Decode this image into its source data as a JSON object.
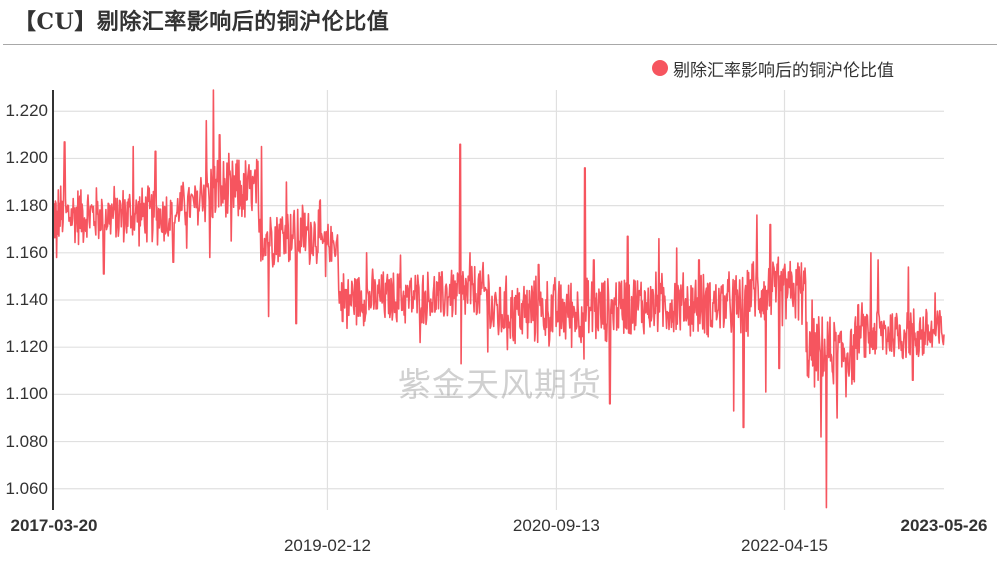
{
  "header": {
    "title": "【CU】剔除汇率影响后的铜沪伦比值"
  },
  "watermark": "紫金天风期货",
  "colors": {
    "series": "#f6555f",
    "axis": "#333333",
    "grid": "#e0e0e0",
    "title_rule": "#a8a8a8"
  },
  "chart_data": {
    "type": "line",
    "title": "【CU】剔除汇率影响后的铜沪伦比值",
    "xlabel": "",
    "ylabel": "",
    "ylim": [
      1.051,
      1.229
    ],
    "y_ticks": [
      "1.060",
      "1.080",
      "1.100",
      "1.120",
      "1.140",
      "1.160",
      "1.180",
      "1.200",
      "1.220"
    ],
    "x_ticks": [
      {
        "label": "2017-03-20",
        "pos": 0.0,
        "row": 0,
        "bold": true
      },
      {
        "label": "2019-02-12",
        "pos": 0.308,
        "row": 1,
        "bold": false
      },
      {
        "label": "2020-09-13",
        "pos": 0.565,
        "row": 0,
        "bold": false
      },
      {
        "label": "2022-04-15",
        "pos": 0.821,
        "row": 1,
        "bold": false
      },
      {
        "label": "2023-05-26",
        "pos": 1.0,
        "row": 0,
        "bold": true
      }
    ],
    "x_range": [
      "2017-03-20",
      "2023-05-26"
    ],
    "grid": true,
    "legend_position": "top-right",
    "series": [
      {
        "name": "剔除汇率影响后的铜沪伦比值",
        "color": "#f6555f",
        "segments": [
          {
            "x_frac": [
              0.0,
              0.03
            ],
            "mean": 1.176,
            "amp": 0.013,
            "spikes": [
              [
                0.013,
                1.207
              ],
              [
                0.004,
                1.158
              ]
            ]
          },
          {
            "x_frac": [
              0.03,
              0.14
            ],
            "mean": 1.176,
            "amp": 0.012,
            "spikes": [
              [
                0.057,
                1.151
              ],
              [
                0.09,
                1.205
              ],
              [
                0.115,
                1.203
              ],
              [
                0.135,
                1.156
              ]
            ]
          },
          {
            "x_frac": [
              0.14,
              0.165
            ],
            "mean": 1.18,
            "amp": 0.01,
            "spikes": [
              [
                0.15,
                1.162
              ]
            ]
          },
          {
            "x_frac": [
              0.165,
              0.23
            ],
            "mean": 1.186,
            "amp": 0.014,
            "spikes": [
              [
                0.172,
                1.216
              ],
              [
                0.18,
                1.229
              ],
              [
                0.176,
                1.158
              ],
              [
                0.187,
                1.21
              ],
              [
                0.2,
                1.165
              ]
            ]
          },
          {
            "x_frac": [
              0.23,
              0.3
            ],
            "mean": 1.168,
            "amp": 0.013,
            "spikes": [
              [
                0.234,
                1.205
              ],
              [
                0.242,
                1.133
              ],
              [
                0.273,
                1.13
              ],
              [
                0.262,
                1.19
              ]
            ]
          },
          {
            "x_frac": [
              0.3,
              0.32
            ],
            "mean": 1.164,
            "amp": 0.008,
            "spikes": [
              [
                0.306,
                1.15
              ]
            ]
          },
          {
            "x_frac": [
              0.32,
              0.44
            ],
            "mean": 1.141,
            "amp": 0.011,
            "spikes": [
              [
                0.33,
                1.128
              ],
              [
                0.352,
                1.16
              ],
              [
                0.39,
                1.159
              ],
              [
                0.412,
                1.122
              ]
            ]
          },
          {
            "x_frac": [
              0.44,
              0.49
            ],
            "mean": 1.143,
            "amp": 0.012,
            "spikes": [
              [
                0.457,
                1.206
              ],
              [
                0.458,
                1.113
              ],
              [
                0.468,
                1.16
              ],
              [
                0.488,
                1.118
              ]
            ]
          },
          {
            "x_frac": [
              0.49,
              0.63
            ],
            "mean": 1.135,
            "amp": 0.014,
            "spikes": [
              [
                0.545,
                1.155
              ],
              [
                0.51,
                1.119
              ],
              [
                0.597,
                1.196
              ],
              [
                0.596,
                1.115
              ],
              [
                0.607,
                1.157
              ],
              [
                0.625,
                1.096
              ]
            ]
          },
          {
            "x_frac": [
              0.63,
              0.78
            ],
            "mean": 1.138,
            "amp": 0.013,
            "spikes": [
              [
                0.645,
                1.167
              ],
              [
                0.68,
                1.166
              ],
              [
                0.7,
                1.162
              ],
              [
                0.725,
                1.157
              ],
              [
                0.764,
                1.093
              ],
              [
                0.775,
                1.086
              ]
            ]
          },
          {
            "x_frac": [
              0.78,
              0.845
            ],
            "mean": 1.144,
            "amp": 0.014,
            "spikes": [
              [
                0.79,
                1.176
              ],
              [
                0.805,
                1.172
              ],
              [
                0.8,
                1.101
              ],
              [
                0.815,
                1.111
              ]
            ]
          },
          {
            "x_frac": [
              0.845,
              0.9
            ],
            "mean": 1.118,
            "amp": 0.014,
            "spikes": [
              [
                0.868,
                1.052
              ],
              [
                0.862,
                1.082
              ],
              [
                0.852,
                1.14
              ],
              [
                0.88,
                1.09
              ],
              [
                0.89,
                1.099
              ]
            ]
          },
          {
            "x_frac": [
              0.9,
              1.0
            ],
            "mean": 1.126,
            "amp": 0.012,
            "spikes": [
              [
                0.918,
                1.16
              ],
              [
                0.926,
                1.157
              ],
              [
                0.96,
                1.154
              ],
              [
                0.99,
                1.143
              ],
              [
                0.965,
                1.106
              ]
            ]
          }
        ]
      }
    ]
  }
}
